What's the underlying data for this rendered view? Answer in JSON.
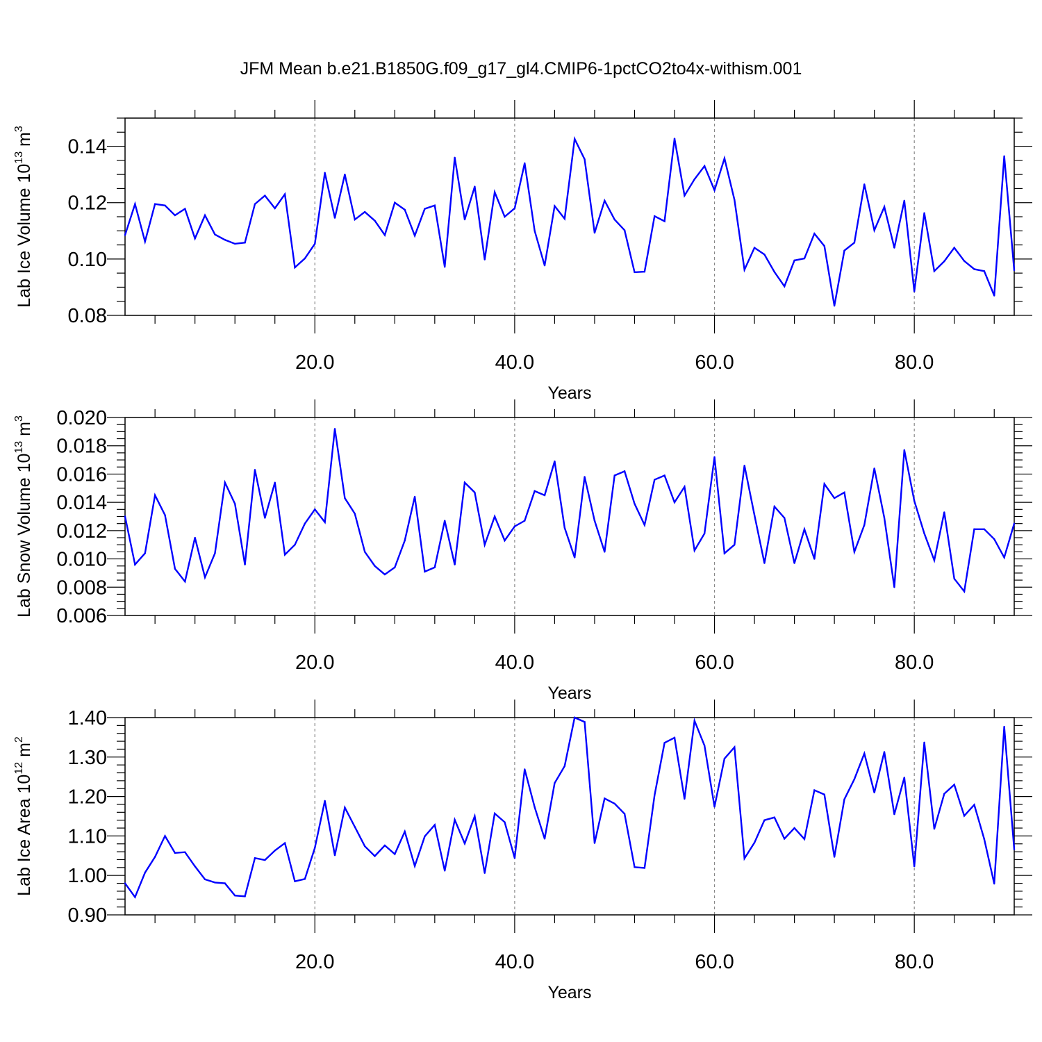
{
  "title": "JFM Mean b.e21.B1850G.f09_g17_gl4.CMIP6-1pctCO2to4x-withism.001",
  "colors": {
    "series": "#0000ff",
    "grid": "#888888",
    "axis": "#000000"
  },
  "chart_data": [
    {
      "type": "line",
      "xlabel": "Years",
      "ylabel": "Lab Ice Volume 10",
      "ylabel_exp": "13",
      "ylabel_unit": " m",
      "ylabel_unit_exp": "3",
      "xlim": [
        1,
        90
      ],
      "ylim": [
        0.08,
        0.15
      ],
      "xticks": [
        20,
        40,
        60,
        80
      ],
      "xtick_labels": [
        "20.0",
        "40.0",
        "60.0",
        "80.0"
      ],
      "yticks": [
        0.08,
        0.1,
        0.12,
        0.14
      ],
      "ytick_labels": [
        "0.08",
        "0.10",
        "0.12",
        "0.14"
      ],
      "y_minor_step": 0.005,
      "x_minor_step": 4,
      "vgrid": [
        20,
        40,
        60,
        80
      ],
      "x_start": 1,
      "values": [
        0.1085,
        0.1195,
        0.1062,
        0.1195,
        0.119,
        0.1155,
        0.1178,
        0.1073,
        0.1155,
        0.1087,
        0.1068,
        0.1054,
        0.1058,
        0.1195,
        0.1225,
        0.118,
        0.123,
        0.097,
        0.1002,
        0.1054,
        0.1306,
        0.1146,
        0.13,
        0.114,
        0.1167,
        0.1136,
        0.1085,
        0.12,
        0.1175,
        0.1083,
        0.1178,
        0.119,
        0.0972,
        0.136,
        0.114,
        0.1257,
        0.0998,
        0.1237,
        0.115,
        0.118,
        0.134,
        0.11,
        0.0977,
        0.1188,
        0.1143,
        0.1426,
        0.1354,
        0.1093,
        0.1207,
        0.114,
        0.1102,
        0.0953,
        0.0955,
        0.1152,
        0.1134,
        0.1427,
        0.1225,
        0.1283,
        0.133,
        0.1244,
        0.1357,
        0.121,
        0.0962,
        0.104,
        0.1016,
        0.0954,
        0.0903,
        0.0995,
        0.1002,
        0.109,
        0.1046,
        0.0834,
        0.103,
        0.1058,
        0.1265,
        0.1102,
        0.1185,
        0.104,
        0.1207,
        0.0885,
        0.1163,
        0.0957,
        0.0992,
        0.104,
        0.0993,
        0.0964,
        0.0957,
        0.087,
        0.1365,
        0.096
      ]
    },
    {
      "type": "line",
      "xlabel": "Years",
      "ylabel": "Lab Snow Volume 10",
      "ylabel_exp": "13",
      "ylabel_unit": " m",
      "ylabel_unit_exp": "3",
      "xlim": [
        1,
        90
      ],
      "ylim": [
        0.006,
        0.02
      ],
      "xticks": [
        20,
        40,
        60,
        80
      ],
      "xtick_labels": [
        "20.0",
        "40.0",
        "60.0",
        "80.0"
      ],
      "yticks": [
        0.006,
        0.008,
        0.01,
        0.012,
        0.014,
        0.016,
        0.018,
        0.02
      ],
      "ytick_labels": [
        "0.006",
        "0.008",
        "0.010",
        "0.012",
        "0.014",
        "0.016",
        "0.018",
        "0.020"
      ],
      "y_minor_step": 0.0005,
      "x_minor_step": 4,
      "vgrid": [
        20,
        40,
        60,
        80
      ],
      "x_start": 1,
      "values": [
        0.013,
        0.0096,
        0.0104,
        0.0145,
        0.0131,
        0.0093,
        0.0084,
        0.0115,
        0.0087,
        0.0104,
        0.0154,
        0.0139,
        0.0096,
        0.0163,
        0.0129,
        0.0154,
        0.0103,
        0.011,
        0.0125,
        0.0135,
        0.0126,
        0.0192,
        0.0143,
        0.0132,
        0.0105,
        0.0095,
        0.0089,
        0.0094,
        0.0113,
        0.0144,
        0.0091,
        0.0094,
        0.0127,
        0.0096,
        0.0154,
        0.0147,
        0.011,
        0.013,
        0.0113,
        0.0123,
        0.0127,
        0.0148,
        0.0145,
        0.0169,
        0.0122,
        0.0101,
        0.0158,
        0.0127,
        0.0105,
        0.0159,
        0.0162,
        0.0139,
        0.0124,
        0.0156,
        0.0159,
        0.014,
        0.0151,
        0.0106,
        0.0118,
        0.0172,
        0.0104,
        0.011,
        0.0166,
        0.0131,
        0.0097,
        0.0137,
        0.0129,
        0.0097,
        0.0121,
        0.01,
        0.0153,
        0.0143,
        0.0147,
        0.0105,
        0.0124,
        0.0164,
        0.0129,
        0.008,
        0.0177,
        0.0141,
        0.0118,
        0.0099,
        0.0133,
        0.0086,
        0.0077,
        0.0121,
        0.0121,
        0.0114,
        0.0101,
        0.0125
      ]
    },
    {
      "type": "line",
      "xlabel": "Years",
      "ylabel": "Lab Ice Area 10",
      "ylabel_exp": "12",
      "ylabel_unit": " m",
      "ylabel_unit_exp": "2",
      "xlim": [
        1,
        90
      ],
      "ylim": [
        0.9,
        1.4
      ],
      "xticks": [
        20,
        40,
        60,
        80
      ],
      "xtick_labels": [
        "20.0",
        "40.0",
        "60.0",
        "80.0"
      ],
      "yticks": [
        0.9,
        1.0,
        1.1,
        1.2,
        1.3,
        1.4
      ],
      "ytick_labels": [
        "0.90",
        "1.00",
        "1.10",
        "1.20",
        "1.30",
        "1.40"
      ],
      "y_minor_step": 0.02,
      "x_minor_step": 4,
      "vgrid": [
        20,
        40,
        60,
        80
      ],
      "x_start": 1,
      "values": [
        0.98,
        0.945,
        1.007,
        1.047,
        1.1,
        1.057,
        1.059,
        1.023,
        0.99,
        0.982,
        0.98,
        0.949,
        0.947,
        1.044,
        1.039,
        1.063,
        1.082,
        0.985,
        0.991,
        1.07,
        1.189,
        1.051,
        1.172,
        1.123,
        1.074,
        1.049,
        1.076,
        1.054,
        1.111,
        1.024,
        1.099,
        1.128,
        1.012,
        1.141,
        1.081,
        1.15,
        1.006,
        1.157,
        1.135,
        1.044,
        1.269,
        1.173,
        1.093,
        1.234,
        1.277,
        1.4,
        1.389,
        1.082,
        1.195,
        1.182,
        1.156,
        1.021,
        1.019,
        1.203,
        1.336,
        1.349,
        1.194,
        1.392,
        1.329,
        1.174,
        1.296,
        1.325,
        1.043,
        1.083,
        1.14,
        1.147,
        1.093,
        1.12,
        1.092,
        1.216,
        1.205,
        1.047,
        1.193,
        1.244,
        1.309,
        1.21,
        1.313,
        1.155,
        1.248,
        1.023,
        1.337,
        1.118,
        1.207,
        1.23,
        1.151,
        1.179,
        1.092,
        0.979,
        1.377,
        1.066
      ]
    }
  ]
}
